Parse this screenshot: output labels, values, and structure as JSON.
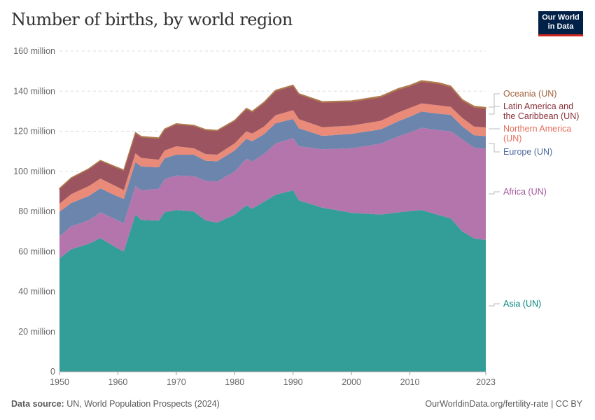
{
  "header": {
    "title": "Number of births, by world region"
  },
  "logo": {
    "line1": "Our World",
    "line2": "in Data"
  },
  "footer": {
    "source_label": "Data source:",
    "source_text": "UN, World Population Prospects (2024)",
    "link": "OurWorldinData.org/fertility-rate | CC BY"
  },
  "chart_data": {
    "type": "area",
    "stacked": true,
    "title": "Number of births, by world region",
    "xlabel": "",
    "ylabel": "",
    "xlim": [
      1950,
      2023
    ],
    "ylim": [
      0,
      160000000
    ],
    "grid": true,
    "legend_placement": "right (inline labels)",
    "x_ticks": [
      "1950",
      "1960",
      "1970",
      "1980",
      "1990",
      "2000",
      "2010",
      "2023"
    ],
    "y_ticks": [
      {
        "value": 0,
        "label": "0"
      },
      {
        "value": 20000000,
        "label": "20 million"
      },
      {
        "value": 40000000,
        "label": "40 million"
      },
      {
        "value": 60000000,
        "label": "60 million"
      },
      {
        "value": 80000000,
        "label": "80 million"
      },
      {
        "value": 100000000,
        "label": "100 million"
      },
      {
        "value": 120000000,
        "label": "120 million"
      },
      {
        "value": 140000000,
        "label": "140 million"
      },
      {
        "value": 160000000,
        "label": "160 million"
      }
    ],
    "x": [
      1950,
      1952,
      1955,
      1957,
      1960,
      1961,
      1963,
      1964,
      1967,
      1968,
      1970,
      1973,
      1975,
      1977,
      1980,
      1982,
      1983,
      1985,
      1987,
      1990,
      1991,
      1995,
      2000,
      2005,
      2008,
      2010,
      2012,
      2015,
      2017,
      2019,
      2021,
      2023
    ],
    "unit": "million births",
    "series": [
      {
        "name": "Asia (UN)",
        "fill": "#339d97",
        "text_color": "#00847e",
        "values": [
          56.6,
          61.1,
          63.8,
          66.7,
          61.5,
          60.0,
          78.4,
          75.8,
          75.4,
          79.5,
          80.7,
          80.0,
          75.5,
          74.4,
          78.4,
          83.0,
          81.3,
          84.8,
          88.3,
          90.5,
          85.5,
          81.9,
          79.3,
          78.4,
          79.5,
          80.1,
          80.7,
          78.1,
          76.5,
          70.0,
          66.5,
          65.7
        ]
      },
      {
        "name": "Africa (UN)",
        "fill": "#b375ac",
        "text_color": "#a2559c",
        "values": [
          10.9,
          11.5,
          11.7,
          12.8,
          14.0,
          14.0,
          14.2,
          14.8,
          15.8,
          16.6,
          17.2,
          17.6,
          19.8,
          20.5,
          21.5,
          23.3,
          23.6,
          23.8,
          25.6,
          26.1,
          27.0,
          29.1,
          32.2,
          35.4,
          37.9,
          39.3,
          41.0,
          42.4,
          43.5,
          45.9,
          45.3,
          45.6
        ]
      },
      {
        "name": "Europe (UN)",
        "fill": "#6c85ac",
        "text_color": "#4c6a9c",
        "values": [
          12.3,
          11.6,
          12.2,
          12.0,
          11.9,
          12.3,
          12.0,
          11.8,
          10.8,
          10.4,
          10.4,
          10.7,
          10.0,
          10.1,
          10.5,
          9.9,
          10.1,
          9.9,
          10.1,
          9.5,
          9.0,
          6.7,
          7.2,
          7.1,
          7.6,
          7.9,
          8.1,
          8.2,
          8.2,
          6.5,
          6.2,
          6.3
        ]
      },
      {
        "name": "Northern America (UN)",
        "fill": "#ea8a78",
        "text_color": "#e56e5a",
        "values": [
          4.0,
          4.4,
          4.9,
          4.9,
          4.7,
          4.3,
          4.4,
          4.3,
          3.8,
          3.9,
          4.2,
          3.2,
          3.3,
          3.3,
          3.6,
          3.8,
          3.8,
          3.8,
          4.0,
          4.4,
          4.5,
          4.3,
          4.1,
          4.3,
          4.4,
          4.3,
          4.1,
          4.2,
          4.0,
          4.2,
          4.3,
          4.3
        ]
      },
      {
        "name": "Latin America and the Caribbean (UN)",
        "fill": "#9c5560",
        "text_color": "#883039",
        "values": [
          7.5,
          8.0,
          8.5,
          8.9,
          9.5,
          9.8,
          10.1,
          10.4,
          10.6,
          10.5,
          11.0,
          11.2,
          12.0,
          11.9,
          11.2,
          11.1,
          10.8,
          11.8,
          12.1,
          12.2,
          12.4,
          12.4,
          12.0,
          11.8,
          11.4,
          10.9,
          10.9,
          10.8,
          9.9,
          8.7,
          9.7,
          9.5
        ]
      },
      {
        "name": "Oceania (UN)",
        "fill": "#b07a4f",
        "text_color": "#a2653e",
        "values": [
          0.2,
          0.2,
          0.2,
          0.2,
          0.3,
          0.3,
          0.3,
          0.3,
          0.3,
          0.3,
          0.3,
          0.3,
          0.3,
          0.3,
          0.3,
          0.4,
          0.4,
          0.4,
          0.4,
          0.4,
          0.4,
          0.4,
          0.4,
          0.5,
          0.5,
          0.5,
          0.5,
          0.5,
          0.5,
          0.5,
          0.5,
          0.5
        ]
      }
    ],
    "legend_labels": [
      {
        "series": "Oceania (UN)",
        "lines": [
          "Oceania (UN)"
        ]
      },
      {
        "series": "Latin America and the Caribbean (UN)",
        "lines": [
          "Latin America and",
          "the Caribbean (UN)"
        ]
      },
      {
        "series": "Northern America (UN)",
        "lines": [
          "Northern America",
          "(UN)"
        ]
      },
      {
        "series": "Europe (UN)",
        "lines": [
          "Europe (UN)"
        ]
      },
      {
        "series": "Africa (UN)",
        "lines": [
          "Africa (UN)"
        ]
      },
      {
        "series": "Asia (UN)",
        "lines": [
          "Asia (UN)"
        ]
      }
    ]
  }
}
